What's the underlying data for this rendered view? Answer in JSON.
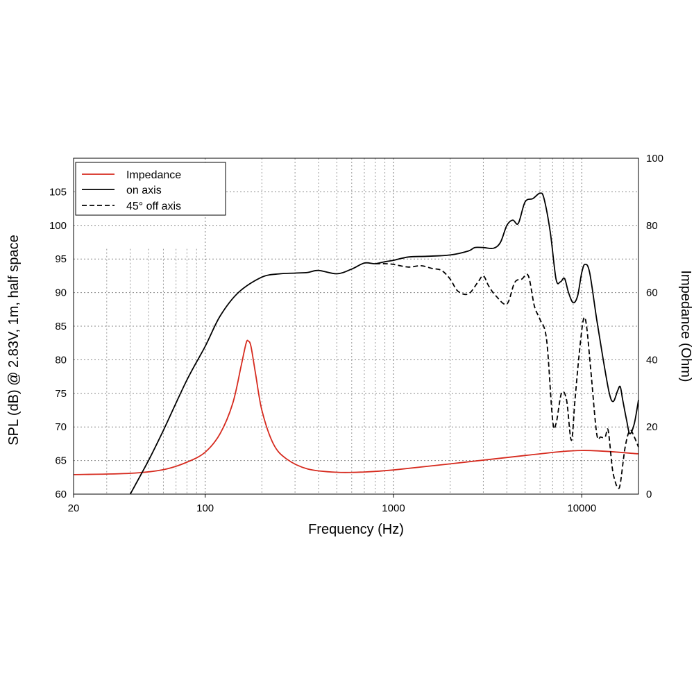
{
  "chart_data": {
    "type": "line",
    "xlabel": "Frequency (Hz)",
    "ylabel": "SPL (dB) @ 2.83V, 1m, half space",
    "y2label": "Impedance (Ohm)",
    "x_scale": "log",
    "xlim": [
      20,
      20000
    ],
    "ylim": [
      60,
      110
    ],
    "y2lim": [
      0,
      100
    ],
    "grid": true,
    "legend_position": "top-left",
    "x_ticks": [
      {
        "value": 20,
        "label": "20"
      },
      {
        "value": 100,
        "label": "100"
      },
      {
        "value": 1000,
        "label": "1000"
      },
      {
        "value": 10000,
        "label": "10000"
      }
    ],
    "y_ticks": [
      {
        "value": 60,
        "label": "60"
      },
      {
        "value": 65,
        "label": "65"
      },
      {
        "value": 70,
        "label": "70"
      },
      {
        "value": 75,
        "label": "75"
      },
      {
        "value": 80,
        "label": "80"
      },
      {
        "value": 85,
        "label": "85"
      },
      {
        "value": 90,
        "label": "90"
      },
      {
        "value": 95,
        "label": "95"
      },
      {
        "value": 100,
        "label": "100"
      },
      {
        "value": 105,
        "label": "105"
      }
    ],
    "y2_ticks": [
      {
        "value": 0,
        "label": "0"
      },
      {
        "value": 20,
        "label": "20"
      },
      {
        "value": 40,
        "label": "40"
      },
      {
        "value": 60,
        "label": "60"
      },
      {
        "value": 80,
        "label": "80"
      },
      {
        "value": 100,
        "label": "100"
      }
    ],
    "series": [
      {
        "name": "Impedance",
        "axis": "right",
        "color": "#d62a1e",
        "dash": "solid",
        "points": [
          [
            20,
            5.8
          ],
          [
            40,
            6.2
          ],
          [
            60,
            7.3
          ],
          [
            80,
            9.5
          ],
          [
            100,
            12.5
          ],
          [
            120,
            18
          ],
          [
            140,
            27
          ],
          [
            155,
            38
          ],
          [
            165,
            45
          ],
          [
            170,
            45.5
          ],
          [
            175,
            44
          ],
          [
            185,
            36
          ],
          [
            200,
            25
          ],
          [
            230,
            15
          ],
          [
            270,
            10.5
          ],
          [
            350,
            7.5
          ],
          [
            500,
            6.5
          ],
          [
            700,
            6.6
          ],
          [
            1000,
            7.2
          ],
          [
            2000,
            9
          ],
          [
            5000,
            11.5
          ],
          [
            10000,
            13
          ],
          [
            20000,
            12
          ]
        ]
      },
      {
        "name": "on axis",
        "axis": "left",
        "color": "#000000",
        "dash": "solid",
        "points": [
          [
            40,
            60
          ],
          [
            50,
            65
          ],
          [
            60,
            69.5
          ],
          [
            80,
            77
          ],
          [
            100,
            82
          ],
          [
            120,
            86.5
          ],
          [
            150,
            90
          ],
          [
            200,
            92.3
          ],
          [
            250,
            92.8
          ],
          [
            300,
            92.9
          ],
          [
            350,
            93
          ],
          [
            400,
            93.3
          ],
          [
            500,
            92.8
          ],
          [
            600,
            93.5
          ],
          [
            700,
            94.4
          ],
          [
            800,
            94.3
          ],
          [
            900,
            94.6
          ],
          [
            1000,
            94.8
          ],
          [
            1200,
            95.3
          ],
          [
            1500,
            95.4
          ],
          [
            2000,
            95.6
          ],
          [
            2500,
            96.2
          ],
          [
            2700,
            96.7
          ],
          [
            3000,
            96.7
          ],
          [
            3400,
            96.6
          ],
          [
            3700,
            97.5
          ],
          [
            4000,
            100
          ],
          [
            4300,
            100.8
          ],
          [
            4600,
            100.3
          ],
          [
            5000,
            103.5
          ],
          [
            5500,
            104
          ],
          [
            6000,
            104.8
          ],
          [
            6300,
            104
          ],
          [
            6800,
            99
          ],
          [
            7300,
            92
          ],
          [
            7700,
            91.6
          ],
          [
            8100,
            92.1
          ],
          [
            8500,
            90
          ],
          [
            9000,
            88.5
          ],
          [
            9500,
            89.5
          ],
          [
            10000,
            93
          ],
          [
            10400,
            94.2
          ],
          [
            11000,
            93
          ],
          [
            12000,
            86
          ],
          [
            13000,
            80
          ],
          [
            14000,
            75
          ],
          [
            14700,
            73.8
          ],
          [
            15500,
            75.4
          ],
          [
            16000,
            76
          ],
          [
            16500,
            74
          ],
          [
            17300,
            71
          ],
          [
            18000,
            69
          ],
          [
            19000,
            70.5
          ],
          [
            20000,
            74
          ]
        ]
      },
      {
        "name": "45° off axis",
        "axis": "left",
        "color": "#000000",
        "dash": "dashed",
        "points": [
          [
            800,
            94.3
          ],
          [
            900,
            94.3
          ],
          [
            1000,
            94.2
          ],
          [
            1200,
            93.8
          ],
          [
            1400,
            94
          ],
          [
            1600,
            93.6
          ],
          [
            1800,
            93.3
          ],
          [
            2000,
            92
          ],
          [
            2200,
            90.2
          ],
          [
            2500,
            89.8
          ],
          [
            2800,
            91.5
          ],
          [
            3000,
            92.5
          ],
          [
            3200,
            91
          ],
          [
            3500,
            89.5
          ],
          [
            4000,
            88.3
          ],
          [
            4400,
            91.5
          ],
          [
            4800,
            92
          ],
          [
            5200,
            92.5
          ],
          [
            5600,
            88
          ],
          [
            6000,
            86
          ],
          [
            6500,
            83
          ],
          [
            7000,
            71
          ],
          [
            7300,
            70.5
          ],
          [
            7800,
            75
          ],
          [
            8300,
            74
          ],
          [
            8800,
            68
          ],
          [
            9200,
            74
          ],
          [
            9700,
            81
          ],
          [
            10200,
            86
          ],
          [
            10600,
            85
          ],
          [
            11200,
            78
          ],
          [
            12000,
            69
          ],
          [
            12600,
            68.5
          ],
          [
            13300,
            68.5
          ],
          [
            13800,
            69.5
          ],
          [
            14500,
            64
          ],
          [
            15000,
            62
          ],
          [
            15500,
            61
          ],
          [
            16000,
            61.5
          ],
          [
            17000,
            67
          ],
          [
            18000,
            69.5
          ],
          [
            19000,
            68.5
          ],
          [
            20000,
            67
          ]
        ]
      }
    ]
  }
}
